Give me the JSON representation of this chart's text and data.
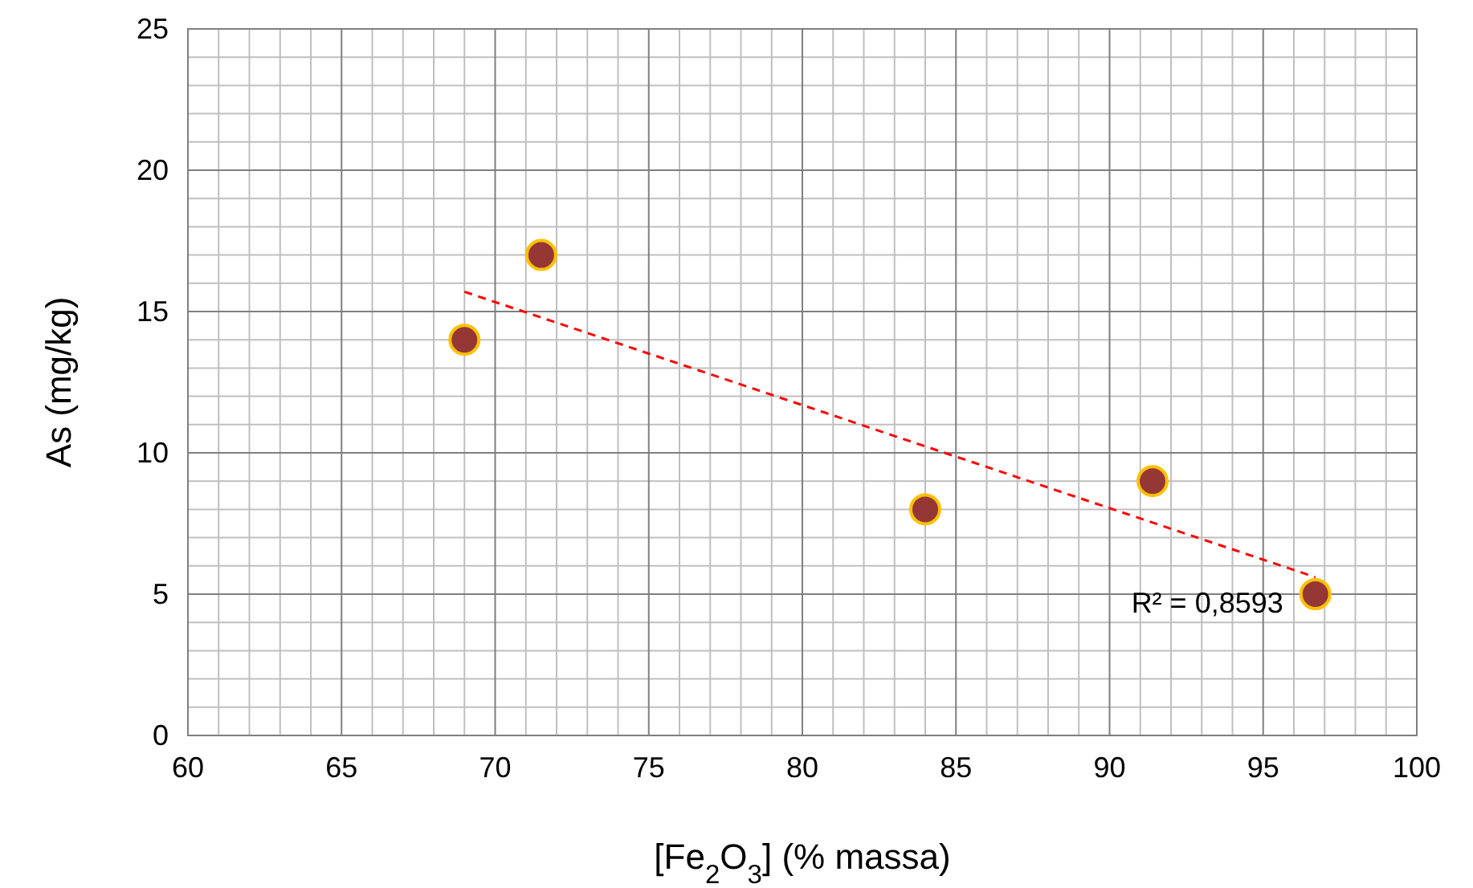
{
  "chart_data": {
    "type": "scatter",
    "xlabel": "[Fe$_{2}$O$_{3}$] (% massa)",
    "ylabel": "As (mg/kg)",
    "xlim": [
      60,
      100
    ],
    "xticks": [
      60,
      65,
      70,
      75,
      80,
      85,
      90,
      95,
      100
    ],
    "ylim": [
      0,
      25
    ],
    "yticks": [
      0,
      5,
      10,
      15,
      20,
      25
    ],
    "grid": true,
    "marker": "circle",
    "series": [
      {
        "type": "scatter",
        "color": "#953735",
        "x": [
          69.0,
          71.5,
          84.0,
          91.4,
          96.7
        ],
        "values": [
          14,
          17,
          8,
          9,
          5
        ]
      },
      {
        "type": "line",
        "color": "#ff0000",
        "line_style": "dashed",
        "marker": "none",
        "x": [
          69.0,
          96.7
        ],
        "values": [
          15.7,
          5.6
        ]
      }
    ],
    "annotations": [
      "R² = 0,8593"
    ]
  }
}
